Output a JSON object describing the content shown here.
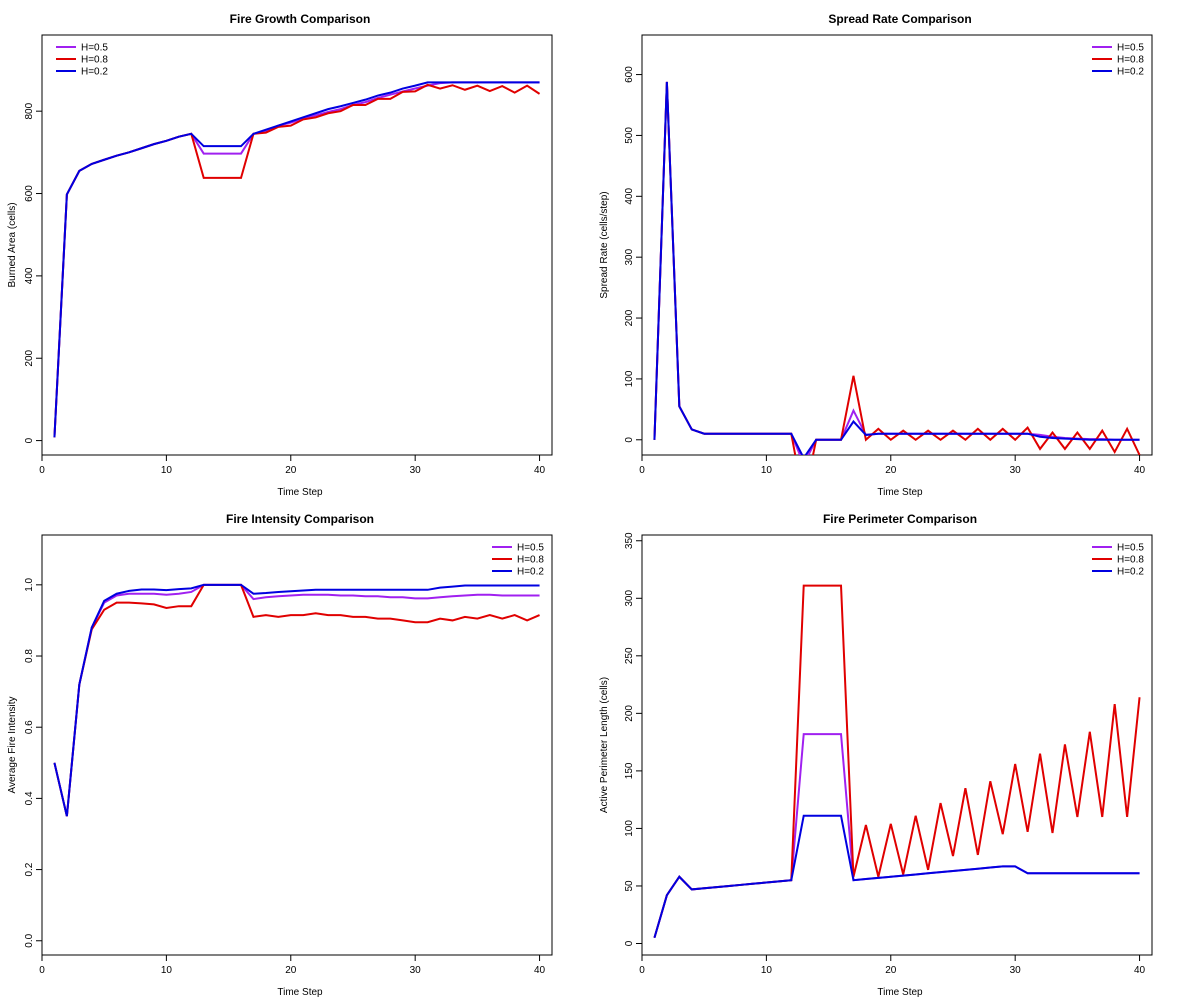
{
  "colors": {
    "H=0.5": "#a020f0",
    "H=0.8": "#e00000",
    "H=0.2": "#0000e0"
  },
  "chart_data": [
    {
      "type": "line",
      "title": "Fire Growth Comparison",
      "xlabel": "Time Step",
      "ylabel": "Burned Area (cells)",
      "xlim": [
        0,
        41
      ],
      "ylim": [
        -35,
        985
      ],
      "xticks": [
        0,
        10,
        20,
        30,
        40
      ],
      "yticks": [
        0,
        200,
        400,
        600,
        800
      ],
      "legend_position": "top-left",
      "grid": false,
      "x": [
        1,
        2,
        3,
        4,
        5,
        6,
        7,
        8,
        9,
        10,
        11,
        12,
        13,
        14,
        15,
        16,
        17,
        18,
        19,
        20,
        21,
        22,
        23,
        24,
        25,
        26,
        27,
        28,
        29,
        30,
        31,
        32,
        33,
        34,
        35,
        36,
        37,
        38,
        39,
        40
      ],
      "series": [
        {
          "name": "H=0.5",
          "values": [
            8,
            598,
            655,
            672,
            682,
            692,
            700,
            710,
            720,
            728,
            738,
            745,
            697,
            697,
            697,
            697,
            745,
            752,
            765,
            772,
            782,
            790,
            798,
            805,
            815,
            822,
            832,
            840,
            848,
            855,
            862,
            868,
            870,
            870,
            870,
            870,
            870,
            870,
            870,
            870
          ]
        },
        {
          "name": "H=0.8",
          "values": [
            8,
            598,
            655,
            672,
            682,
            692,
            700,
            710,
            720,
            728,
            738,
            745,
            638,
            638,
            638,
            638,
            745,
            748,
            762,
            765,
            780,
            785,
            795,
            800,
            815,
            815,
            830,
            830,
            847,
            848,
            864,
            855,
            863,
            852,
            862,
            849,
            861,
            845,
            862,
            842
          ]
        },
        {
          "name": "H=0.2",
          "values": [
            8,
            598,
            655,
            672,
            682,
            692,
            700,
            710,
            720,
            728,
            738,
            745,
            715,
            715,
            715,
            715,
            745,
            755,
            765,
            775,
            785,
            795,
            805,
            812,
            820,
            828,
            838,
            845,
            855,
            862,
            870,
            870,
            870,
            870,
            870,
            870,
            870,
            870,
            870,
            870
          ]
        }
      ]
    },
    {
      "type": "line",
      "title": "Spread Rate Comparison",
      "xlabel": "Time Step",
      "ylabel": "Spread Rate (cells/step)",
      "xlim": [
        0,
        41
      ],
      "ylim": [
        -25,
        665
      ],
      "xticks": [
        0,
        10,
        20,
        30,
        40
      ],
      "yticks": [
        0,
        100,
        200,
        300,
        400,
        500,
        600
      ],
      "legend_position": "top-right",
      "grid": false,
      "x": [
        1,
        2,
        3,
        4,
        5,
        6,
        7,
        8,
        9,
        10,
        11,
        12,
        13,
        14,
        15,
        16,
        17,
        18,
        19,
        20,
        21,
        22,
        23,
        24,
        25,
        26,
        27,
        28,
        29,
        30,
        31,
        32,
        33,
        34,
        35,
        36,
        37,
        38,
        39,
        40
      ],
      "series": [
        {
          "name": "H=0.5",
          "values": [
            0,
            588,
            55,
            17,
            10,
            10,
            10,
            10,
            10,
            10,
            10,
            10,
            -40,
            0,
            0,
            0,
            48,
            8,
            10,
            10,
            10,
            10,
            10,
            10,
            10,
            10,
            10,
            10,
            10,
            10,
            10,
            8,
            5,
            3,
            2,
            1,
            1,
            0,
            0,
            0
          ]
        },
        {
          "name": "H=0.8",
          "values": [
            0,
            588,
            55,
            17,
            10,
            10,
            10,
            10,
            10,
            10,
            10,
            10,
            -100,
            0,
            0,
            0,
            105,
            0,
            18,
            0,
            15,
            0,
            15,
            0,
            15,
            0,
            18,
            0,
            18,
            0,
            20,
            -15,
            12,
            -15,
            12,
            -15,
            15,
            -20,
            18,
            -25
          ]
        },
        {
          "name": "H=0.2",
          "values": [
            0,
            588,
            55,
            17,
            10,
            10,
            10,
            10,
            10,
            10,
            10,
            10,
            -30,
            0,
            0,
            0,
            30,
            8,
            10,
            10,
            10,
            10,
            10,
            10,
            10,
            10,
            10,
            10,
            10,
            10,
            10,
            5,
            3,
            2,
            1,
            0,
            0,
            0,
            0,
            0
          ]
        }
      ]
    },
    {
      "type": "line",
      "title": "Fire Intensity Comparison",
      "xlabel": "Time Step",
      "ylabel": "Average Fire Intensity",
      "xlim": [
        0,
        41
      ],
      "ylim": [
        -0.04,
        1.14
      ],
      "xticks": [
        0,
        10,
        20,
        30,
        40
      ],
      "yticks": [
        0.0,
        0.2,
        0.4,
        0.6,
        0.8,
        1.0
      ],
      "ytick_labels": [
        "0.0",
        "0.2",
        "0.4",
        "0.6",
        "0.8",
        "1.0"
      ],
      "legend_position": "top-right",
      "grid": false,
      "x": [
        1,
        2,
        3,
        4,
        5,
        6,
        7,
        8,
        9,
        10,
        11,
        12,
        13,
        14,
        15,
        16,
        17,
        18,
        19,
        20,
        21,
        22,
        23,
        24,
        25,
        26,
        27,
        28,
        29,
        30,
        31,
        32,
        33,
        34,
        35,
        36,
        37,
        38,
        39,
        40
      ],
      "series": [
        {
          "name": "H=0.5",
          "values": [
            0.5,
            0.35,
            0.72,
            0.88,
            0.95,
            0.97,
            0.975,
            0.975,
            0.975,
            0.972,
            0.975,
            0.98,
            1.0,
            1.0,
            1.0,
            1.0,
            0.96,
            0.965,
            0.968,
            0.97,
            0.972,
            0.972,
            0.972,
            0.97,
            0.97,
            0.968,
            0.968,
            0.965,
            0.965,
            0.962,
            0.962,
            0.965,
            0.968,
            0.97,
            0.972,
            0.972,
            0.97,
            0.97,
            0.97,
            0.97
          ]
        },
        {
          "name": "H=0.8",
          "values": [
            0.5,
            0.35,
            0.72,
            0.875,
            0.93,
            0.95,
            0.95,
            0.948,
            0.945,
            0.935,
            0.94,
            0.94,
            1.0,
            1.0,
            1.0,
            1.0,
            0.91,
            0.915,
            0.91,
            0.915,
            0.915,
            0.92,
            0.915,
            0.915,
            0.91,
            0.91,
            0.905,
            0.905,
            0.9,
            0.895,
            0.895,
            0.905,
            0.9,
            0.91,
            0.905,
            0.915,
            0.905,
            0.915,
            0.9,
            0.915
          ]
        },
        {
          "name": "H=0.2",
          "values": [
            0.5,
            0.35,
            0.72,
            0.88,
            0.955,
            0.975,
            0.983,
            0.987,
            0.987,
            0.985,
            0.988,
            0.99,
            1.0,
            1.0,
            1.0,
            1.0,
            0.975,
            0.977,
            0.98,
            0.982,
            0.984,
            0.986,
            0.986,
            0.986,
            0.986,
            0.986,
            0.986,
            0.986,
            0.986,
            0.986,
            0.986,
            0.992,
            0.995,
            0.998,
            0.998,
            0.998,
            0.998,
            0.998,
            0.998,
            0.998
          ]
        }
      ]
    },
    {
      "type": "line",
      "title": "Fire Perimeter Comparison",
      "xlabel": "Time Step",
      "ylabel": "Active Perimeter Length (cells)",
      "xlim": [
        0,
        41
      ],
      "ylim": [
        -10,
        355
      ],
      "xticks": [
        0,
        10,
        20,
        30,
        40
      ],
      "yticks": [
        0,
        50,
        100,
        150,
        200,
        250,
        300,
        350
      ],
      "legend_position": "top-right",
      "grid": false,
      "x": [
        1,
        2,
        3,
        4,
        5,
        6,
        7,
        8,
        9,
        10,
        11,
        12,
        13,
        14,
        15,
        16,
        17,
        18,
        19,
        20,
        21,
        22,
        23,
        24,
        25,
        26,
        27,
        28,
        29,
        30,
        31,
        32,
        33,
        34,
        35,
        36,
        37,
        38,
        39,
        40
      ],
      "series": [
        {
          "name": "H=0.5",
          "values": [
            5,
            42,
            58,
            47,
            48,
            49,
            50,
            51,
            52,
            53,
            54,
            55,
            182,
            182,
            182,
            182,
            55,
            56,
            57,
            58,
            59,
            60,
            61,
            62,
            63,
            64,
            65,
            66,
            67,
            67,
            61,
            61,
            61,
            61,
            61,
            61,
            61,
            61,
            61,
            61
          ]
        },
        {
          "name": "H=0.8",
          "values": [
            5,
            42,
            58,
            47,
            48,
            49,
            50,
            51,
            52,
            53,
            54,
            55,
            311,
            311,
            311,
            311,
            58,
            103,
            58,
            104,
            60,
            111,
            64,
            122,
            76,
            135,
            77,
            141,
            95,
            156,
            97,
            165,
            96,
            173,
            110,
            184,
            110,
            208,
            110,
            214
          ]
        },
        {
          "name": "H=0.2",
          "values": [
            5,
            42,
            58,
            47,
            48,
            49,
            50,
            51,
            52,
            53,
            54,
            55,
            111,
            111,
            111,
            111,
            55,
            56,
            57,
            58,
            59,
            60,
            61,
            62,
            63,
            64,
            65,
            66,
            67,
            67,
            61,
            61,
            61,
            61,
            61,
            61,
            61,
            61,
            61,
            61
          ]
        }
      ]
    }
  ]
}
